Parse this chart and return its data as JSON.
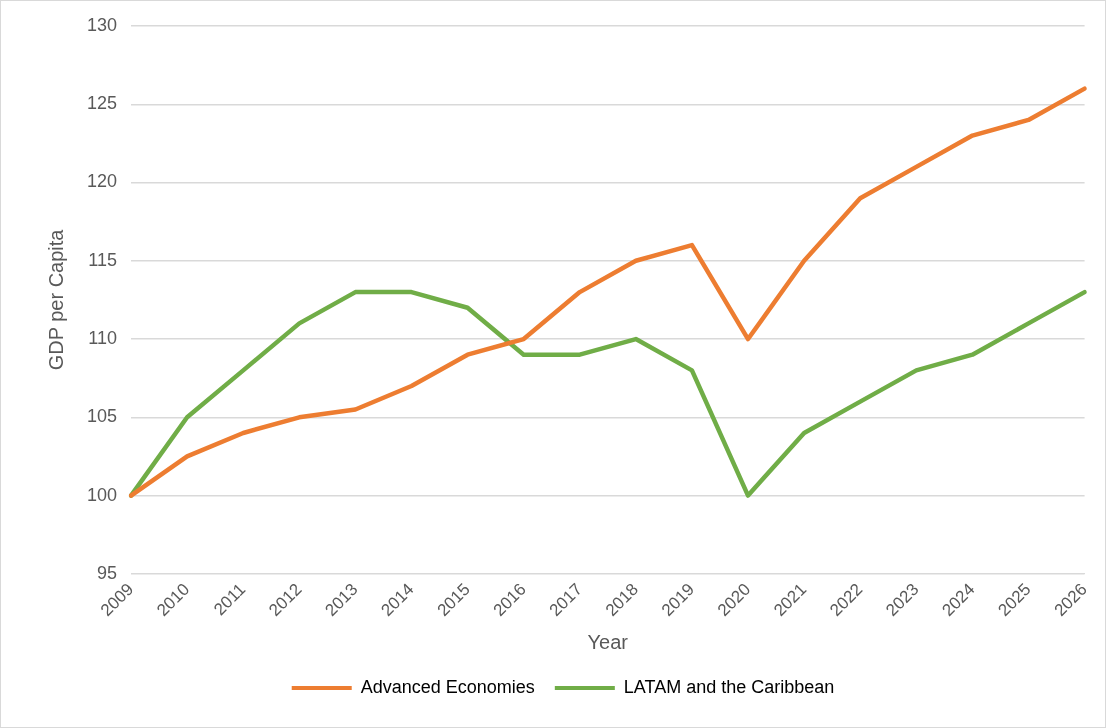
{
  "chart_data": {
    "type": "line",
    "xlabel": "Year",
    "ylabel": "GDP per Capita",
    "categories": [
      "2009",
      "2010",
      "2011",
      "2012",
      "2013",
      "2014",
      "2015",
      "2016",
      "2017",
      "2018",
      "2019",
      "2020",
      "2021",
      "2022",
      "2023",
      "2024",
      "2025",
      "2026"
    ],
    "series": [
      {
        "name": "Advanced Economies",
        "color": "#ed7d31",
        "values": [
          100,
          102.5,
          104,
          105,
          105.5,
          107,
          109,
          110,
          113,
          115,
          116,
          110,
          115,
          119,
          121,
          123,
          124,
          126
        ]
      },
      {
        "name": "LATAM and the Caribbean",
        "color": "#70ad47",
        "values": [
          100,
          105,
          108,
          111,
          113,
          113,
          112,
          109,
          109,
          110,
          108,
          100,
          104,
          106,
          108,
          109,
          111,
          113
        ]
      }
    ],
    "ylim": [
      95,
      130
    ],
    "yticks": [
      95,
      100,
      105,
      110,
      115,
      120,
      125,
      130
    ],
    "grid": "y",
    "legend": "bottom",
    "marker": "none",
    "line_style": "solid"
  }
}
